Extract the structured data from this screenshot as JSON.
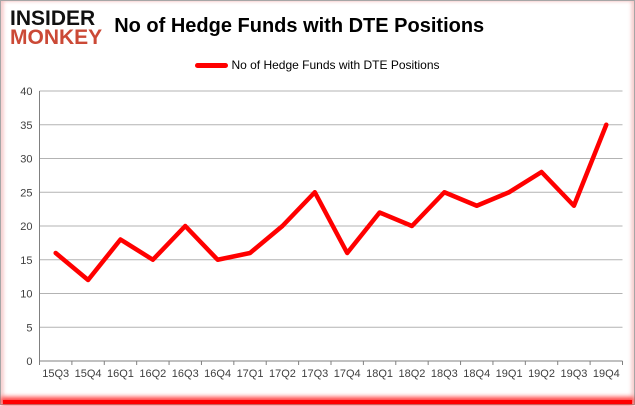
{
  "logo": {
    "line1": "INSIDER",
    "line2": "MONKEY"
  },
  "header": {
    "title": "No of Hedge Funds with DTE Positions"
  },
  "legend": {
    "label": "No of Hedge Funds with DTE Positions",
    "color": "#ff0000"
  },
  "chart_data": {
    "type": "line",
    "title": "No of Hedge Funds with DTE Positions",
    "categories": [
      "15Q3",
      "15Q4",
      "16Q1",
      "16Q2",
      "16Q3",
      "16Q4",
      "17Q1",
      "17Q2",
      "17Q3",
      "17Q4",
      "18Q1",
      "18Q2",
      "18Q3",
      "18Q4",
      "19Q1",
      "19Q2",
      "19Q3",
      "19Q4"
    ],
    "values": [
      16,
      12,
      18,
      15,
      20,
      15,
      16,
      20,
      25,
      16,
      22,
      20,
      25,
      23,
      25,
      28,
      23,
      35
    ],
    "xlabel": "",
    "ylabel": "",
    "ylim": [
      0,
      40
    ],
    "ytick_step": 5,
    "grid": true,
    "legend_position": "top-center",
    "series_color": "#ff0000"
  },
  "colors": {
    "line": "#ff0000",
    "gridline": "#b3b3b3",
    "axis": "#808080",
    "tick_label": "#404040",
    "logo_accent": "#cb4936",
    "border": "#a6a6a6"
  }
}
